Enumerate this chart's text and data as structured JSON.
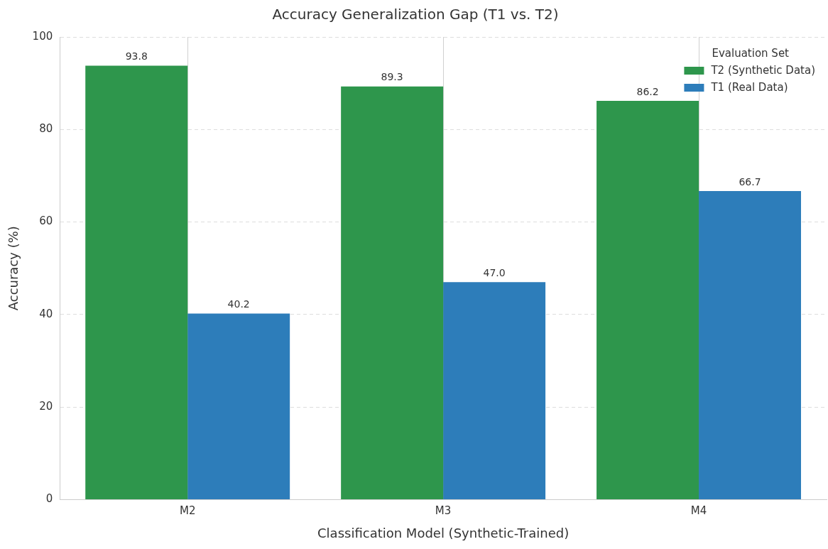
{
  "chart_data": {
    "type": "bar",
    "title": "Accuracy Generalization Gap (T1 vs. T2)",
    "xlabel": "Classification Model (Synthetic-Trained)",
    "ylabel": "Accuracy (%)",
    "legend_title": "Evaluation Set",
    "categories": [
      "M2",
      "M3",
      "M4"
    ],
    "series": [
      {
        "name": "T2 (Synthetic Data)",
        "color": "#2e964c",
        "values": [
          93.8,
          89.3,
          86.2
        ],
        "value_labels": [
          "93.8",
          "89.3",
          "86.2"
        ]
      },
      {
        "name": "T1 (Real Data)",
        "color": "#2d7dba",
        "values": [
          40.2,
          47.0,
          66.7
        ],
        "value_labels": [
          "40.2",
          "47.0",
          "66.7"
        ]
      }
    ],
    "ylim": [
      0,
      100
    ],
    "yticks": [
      0,
      20,
      40,
      60,
      80,
      100
    ],
    "grid": true,
    "legend": "top right"
  }
}
